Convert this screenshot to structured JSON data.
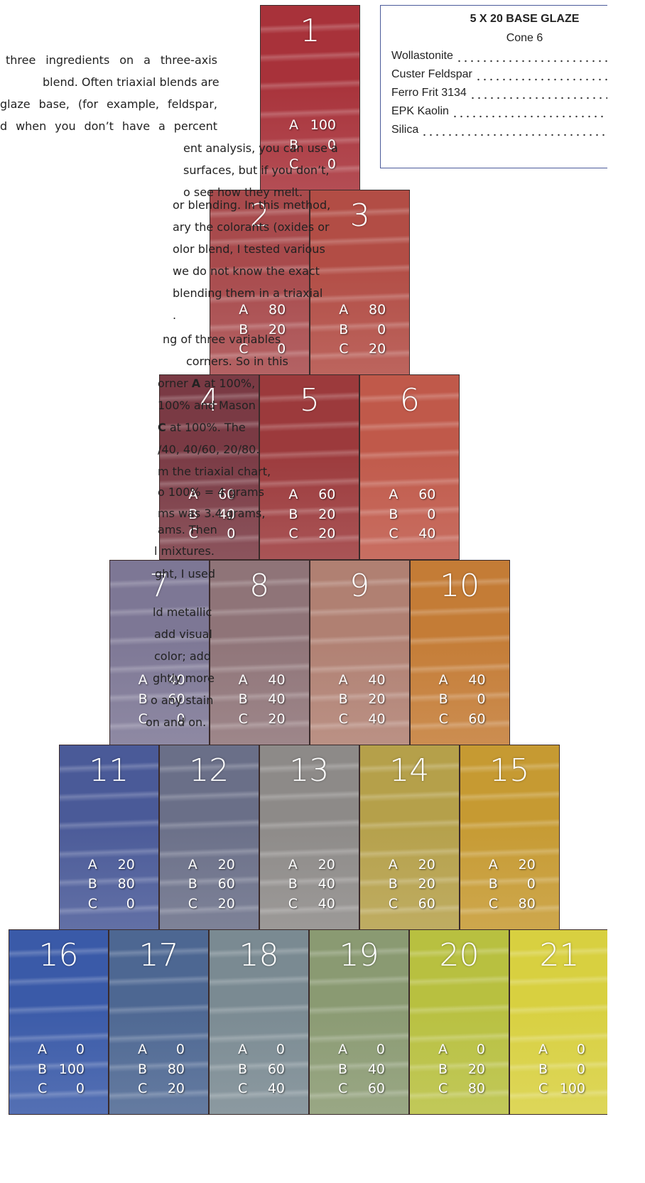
{
  "text_lines": [
    [
      "three ingredients on a three-axis"
    ],
    [
      "blend. Often triaxial blends are"
    ],
    [
      "glaze base, (for example, feldspar,"
    ],
    [
      "d when you don’t have a percent"
    ],
    [
      "ent analysis, you can use a"
    ],
    [
      "surfaces, but if you don’t,"
    ],
    [
      "o see how they melt."
    ],
    [
      "or blending. In this method,"
    ],
    [
      "ary the colorants (oxides or"
    ],
    [
      "olor blend, I tested various"
    ],
    [
      "we do not know the exact"
    ],
    [
      "blending them in a triaxial"
    ],
    [
      "."
    ],
    [
      "ng of three variables"
    ],
    [
      "corners. So in this"
    ],
    [
      "orner ",
      "A",
      " at 100%,"
    ],
    [
      "100% and Mason"
    ],
    [
      "",
      "C",
      " at 100%. The"
    ],
    [
      "/40, 40/60, 20/80."
    ],
    [
      "m the triaxial chart,"
    ],
    [
      "o 100% = 4 grams"
    ],
    [
      "ms was 3.4 grams,"
    ],
    [
      "ams. Then"
    ],
    [
      "l mixtures."
    ],
    [
      "ght, I used"
    ],
    [
      "ld metallic"
    ],
    [
      "add visual"
    ],
    [
      "color; add"
    ],
    [
      "ghtly more"
    ],
    [
      "o any stain"
    ],
    [
      "on and on."
    ]
  ],
  "recipe": {
    "title": "5 X 20 BASE GLAZE",
    "subtitle": "Cone 6",
    "ingredients": [
      "Wollastonite",
      "Custer Feldspar",
      "Ferro Frit 3134",
      "EPK Kaolin",
      "Silica"
    ]
  },
  "tile_labels": [
    "A",
    "B",
    "C"
  ],
  "tiles": [
    {
      "number": "1",
      "values": [
        100,
        0,
        0
      ]
    },
    {
      "number": "2",
      "values": [
        80,
        20,
        0
      ]
    },
    {
      "number": "3",
      "values": [
        80,
        0,
        20
      ]
    },
    {
      "number": "4",
      "values": [
        60,
        40,
        0
      ]
    },
    {
      "number": "5",
      "values": [
        60,
        20,
        20
      ]
    },
    {
      "number": "6",
      "values": [
        60,
        0,
        40
      ]
    },
    {
      "number": "7",
      "values": [
        40,
        60,
        0
      ]
    },
    {
      "number": "8",
      "values": [
        40,
        40,
        20
      ]
    },
    {
      "number": "9",
      "values": [
        40,
        20,
        40
      ]
    },
    {
      "number": "10",
      "values": [
        40,
        0,
        60
      ]
    },
    {
      "number": "11",
      "values": [
        20,
        80,
        0
      ]
    },
    {
      "number": "12",
      "values": [
        20,
        60,
        20
      ]
    },
    {
      "number": "13",
      "values": [
        20,
        40,
        40
      ]
    },
    {
      "number": "14",
      "values": [
        20,
        20,
        60
      ]
    },
    {
      "number": "15",
      "values": [
        20,
        0,
        80
      ]
    },
    {
      "number": "16",
      "values": [
        0,
        100,
        0
      ]
    },
    {
      "number": "17",
      "values": [
        0,
        80,
        20
      ]
    },
    {
      "number": "18",
      "values": [
        0,
        60,
        40
      ]
    },
    {
      "number": "19",
      "values": [
        0,
        40,
        60
      ]
    },
    {
      "number": "20",
      "values": [
        0,
        20,
        80
      ]
    },
    {
      "number": "21",
      "values": [
        0,
        0,
        100
      ]
    }
  ]
}
